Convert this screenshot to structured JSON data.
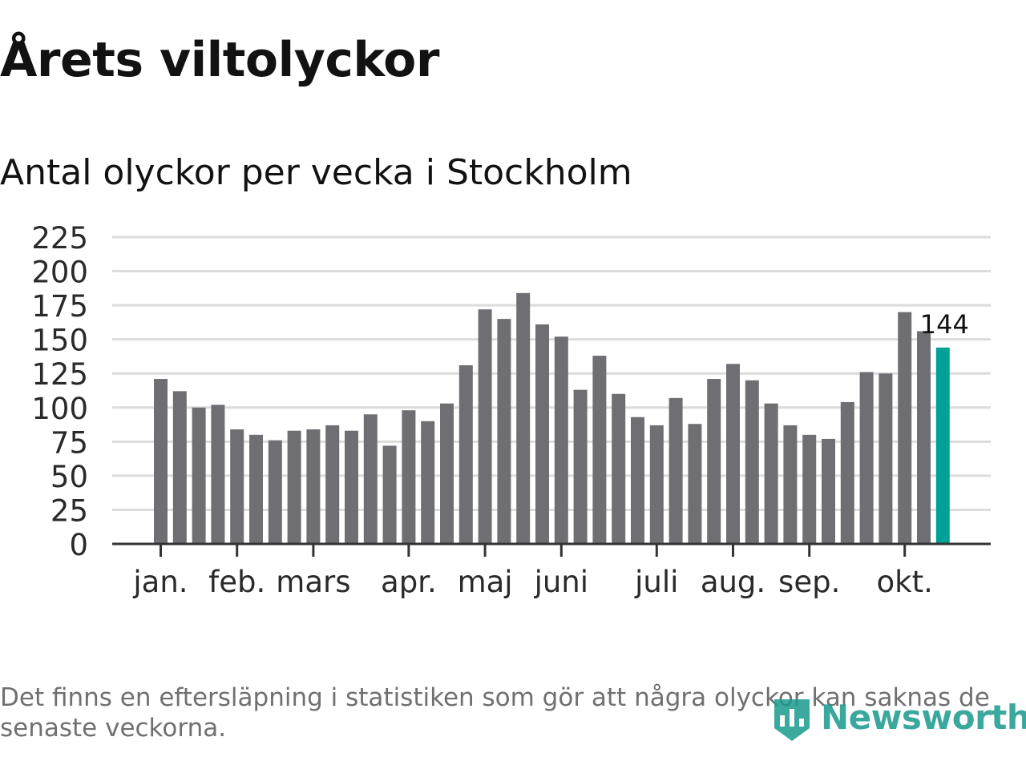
{
  "title": "Årets viltolyckor",
  "subtitle": "Antal olyckor per vecka i Stockholm",
  "footnote": "Det finns en eftersläpning i statistiken som gör att några olyckor kan saknas de senaste veckorna.",
  "logo": {
    "text": "Newsworthy",
    "icon": "bar-chart-icon"
  },
  "colors": {
    "bar": "#6f6e73",
    "highlight": "#00a197",
    "grid": "#dcdcdc",
    "axis": "#333333",
    "text": "#121212",
    "footnote": "#707070",
    "logo": "#1a9a8e"
  },
  "chart_data": {
    "type": "bar",
    "title": "Antal olyckor per vecka i Stockholm",
    "xlabel": "",
    "ylabel": "",
    "ylim": [
      0,
      225
    ],
    "yticks": [
      "0",
      "25",
      "50",
      "75",
      "100",
      "125",
      "150",
      "175",
      "200",
      "225"
    ],
    "grid": true,
    "values": [
      121,
      112,
      100,
      102,
      84,
      80,
      76,
      83,
      84,
      87,
      83,
      95,
      72,
      98,
      90,
      103,
      131,
      172,
      165,
      184,
      161,
      152,
      113,
      138,
      110,
      93,
      87,
      107,
      88,
      121,
      132,
      120,
      103,
      87,
      80,
      77,
      104,
      126,
      125,
      170,
      156,
      144
    ],
    "highlight_index": 41,
    "highlight_label": "144",
    "month_ticks": [
      {
        "label": "jan.",
        "week": 0
      },
      {
        "label": "feb.",
        "week": 4
      },
      {
        "label": "mars",
        "week": 8
      },
      {
        "label": "apr.",
        "week": 13
      },
      {
        "label": "maj",
        "week": 17
      },
      {
        "label": "juni",
        "week": 21
      },
      {
        "label": "juli",
        "week": 26
      },
      {
        "label": "aug.",
        "week": 30
      },
      {
        "label": "sep.",
        "week": 34
      },
      {
        "label": "okt.",
        "week": 39
      }
    ]
  }
}
